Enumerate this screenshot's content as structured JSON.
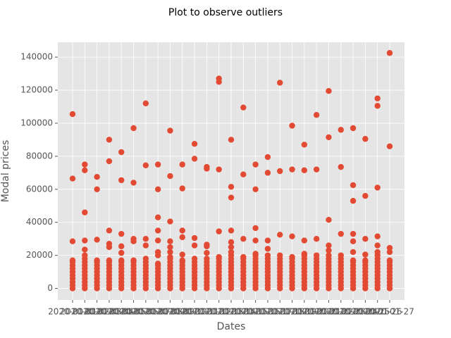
{
  "chart_data": {
    "type": "scatter",
    "title": "Plot to observe outliers",
    "x_label": "Dates",
    "y_label": "Modal prices",
    "categories": [
      "2020-01-01",
      "2020-01-02",
      "2020-01-03",
      "2020-01-04",
      "2020-01-05",
      "2020-01-06",
      "2020-01-07",
      "2020-01-08",
      "2020-01-09",
      "2020-01-10",
      "2020-01-11",
      "2020-01-12",
      "2020-01-13",
      "2020-01-14",
      "2020-01-15",
      "2020-01-16",
      "2020-01-17",
      "2020-01-18",
      "2020-01-19",
      "2020-01-20",
      "2020-01-21",
      "2020-01-22",
      "2020-01-23",
      "2020-01-24",
      "2020-01-25",
      "2020-01-26",
      "2020-01-27"
    ],
    "values": [
      [
        105500,
        66500,
        28500,
        17000,
        16000,
        14000,
        12000,
        10000,
        8000,
        6000,
        4000,
        2000,
        0
      ],
      [
        75000,
        71500,
        46000,
        29000,
        23500,
        20000,
        18000,
        16000,
        14000,
        12000,
        10000,
        8000,
        6000,
        4000,
        2000,
        0
      ],
      [
        67500,
        60000,
        29500,
        17000,
        16000,
        14000,
        12000,
        10000,
        8000,
        6000,
        4000,
        2000,
        0
      ],
      [
        90000,
        77000,
        35000,
        27000,
        25000,
        17000,
        16000,
        14000,
        12000,
        10000,
        8000,
        6000,
        4000,
        2000,
        0
      ],
      [
        82500,
        65500,
        33000,
        25500,
        21500,
        17000,
        16000,
        14000,
        12000,
        10000,
        8000,
        6000,
        4000,
        2000,
        0
      ],
      [
        97000,
        64000,
        30000,
        28500,
        17000,
        16000,
        14000,
        12000,
        10000,
        8000,
        6000,
        4000,
        2000,
        0
      ],
      [
        112000,
        74500,
        30000,
        26000,
        18000,
        16000,
        14000,
        12000,
        10000,
        8000,
        6000,
        4000,
        2000,
        0
      ],
      [
        75000,
        60000,
        43000,
        35000,
        29000,
        22000,
        20000,
        15000,
        14000,
        12000,
        10000,
        8000,
        6000,
        4000,
        2000,
        0
      ],
      [
        95500,
        68000,
        40500,
        28500,
        25000,
        22000,
        19000,
        18000,
        16000,
        14000,
        12000,
        10000,
        8000,
        6000,
        4000,
        2000,
        0
      ],
      [
        75000,
        60500,
        35000,
        31000,
        20500,
        17000,
        16000,
        14000,
        12000,
        10000,
        8000,
        6000,
        4000,
        2000,
        0
      ],
      [
        87500,
        78500,
        30500,
        26000,
        18000,
        16000,
        14000,
        12000,
        10000,
        8000,
        6000,
        4000,
        2000,
        0
      ],
      [
        73500,
        72500,
        26500,
        25500,
        21500,
        18000,
        16000,
        14000,
        12000,
        10000,
        8000,
        6000,
        4000,
        2000,
        0
      ],
      [
        127000,
        125000,
        72000,
        34500,
        19000,
        18000,
        16000,
        14000,
        12000,
        10000,
        8000,
        6000,
        4000,
        2000,
        0
      ],
      [
        90000,
        61500,
        55000,
        35000,
        28000,
        25000,
        22000,
        20000,
        18000,
        16000,
        14000,
        12000,
        10000,
        8000,
        6000,
        4000,
        2000,
        0
      ],
      [
        109500,
        69000,
        30000,
        19000,
        18000,
        16000,
        14000,
        12000,
        10000,
        8000,
        6000,
        4000,
        2000,
        0
      ],
      [
        75000,
        60000,
        36500,
        29000,
        21000,
        20000,
        18000,
        16000,
        14000,
        12000,
        10000,
        8000,
        6000,
        4000,
        2000,
        0
      ],
      [
        79500,
        70000,
        29000,
        24000,
        20000,
        18000,
        16000,
        14000,
        12000,
        10000,
        8000,
        6000,
        4000,
        2000,
        0
      ],
      [
        124500,
        71000,
        32500,
        20000,
        18000,
        16000,
        14000,
        12000,
        10000,
        8000,
        6000,
        4000,
        2000,
        0
      ],
      [
        98500,
        72000,
        31500,
        19000,
        18000,
        16000,
        14000,
        12000,
        10000,
        8000,
        6000,
        4000,
        2000,
        0
      ],
      [
        87000,
        71500,
        29000,
        21000,
        20000,
        18000,
        16000,
        14000,
        12000,
        10000,
        8000,
        6000,
        4000,
        2000,
        0
      ],
      [
        105000,
        72000,
        30000,
        20000,
        18000,
        16000,
        14000,
        12000,
        10000,
        8000,
        6000,
        4000,
        2000,
        0
      ],
      [
        119500,
        91500,
        41500,
        26000,
        23000,
        20000,
        18000,
        16000,
        14000,
        12000,
        10000,
        8000,
        6000,
        4000,
        2000,
        0
      ],
      [
        96000,
        73500,
        33000,
        20000,
        18000,
        16000,
        14000,
        12000,
        10000,
        8000,
        6000,
        4000,
        2000,
        0
      ],
      [
        97000,
        62500,
        53000,
        33000,
        28500,
        22000,
        17000,
        16000,
        14000,
        12000,
        10000,
        8000,
        6000,
        4000,
        2000,
        0
      ],
      [
        90500,
        56000,
        30000,
        20500,
        17000,
        16000,
        14000,
        12000,
        10000,
        8000,
        6000,
        4000,
        2000,
        0
      ],
      [
        115000,
        110500,
        61000,
        31500,
        26000,
        22000,
        20000,
        18000,
        16000,
        14000,
        12000,
        10000,
        8000,
        6000,
        4000,
        2000,
        0
      ],
      [
        142500,
        86000,
        24500,
        22000,
        17000,
        16000,
        14000,
        12000,
        10000,
        8000,
        6000,
        4000,
        2000,
        0
      ]
    ],
    "color": "#E24A33",
    "ylim": [
      -7000,
      149000
    ],
    "yticks": [
      0,
      20000,
      40000,
      60000,
      80000,
      100000,
      120000,
      140000
    ],
    "grid": true
  }
}
